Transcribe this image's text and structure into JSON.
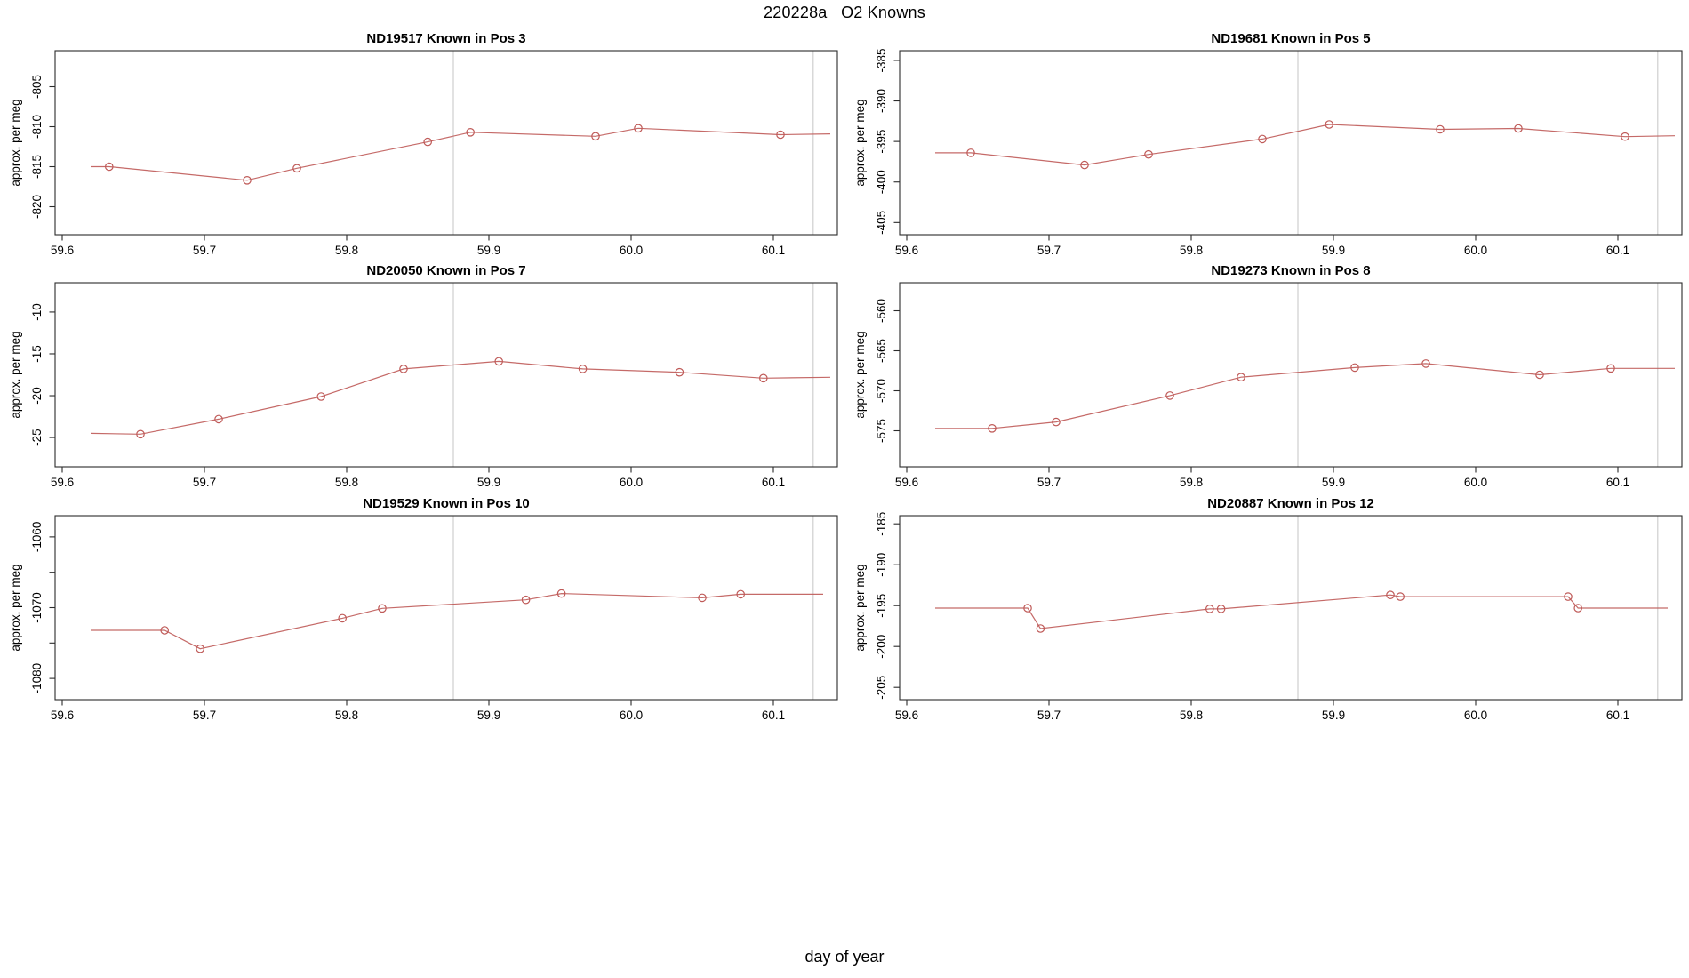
{
  "page": {
    "title": "220228a   O2 Knowns",
    "xlabel": "day of year",
    "background": "#ffffff"
  },
  "style": {
    "line_color": "#bf5a58",
    "grid_color": "#cfcfcf",
    "axis_color": "#2b2b2b",
    "text_color": "#000000"
  },
  "chart_common": {
    "type": "line",
    "ylabel": "approx. per meg",
    "xlim": [
      59.595,
      60.145
    ],
    "xticks": [
      {
        "v": 59.6,
        "l": "59.6"
      },
      {
        "v": 59.7,
        "l": "59.7"
      },
      {
        "v": 59.8,
        "l": "59.8"
      },
      {
        "v": 59.9,
        "l": "59.9"
      },
      {
        "v": 60.0,
        "l": "60.0"
      },
      {
        "v": 60.1,
        "l": "60.1"
      }
    ],
    "vlines": [
      59.875,
      60.128
    ],
    "marker_indices": [
      1,
      2,
      3,
      4,
      5,
      6,
      7,
      8
    ],
    "grid": "off",
    "legend": "none"
  },
  "chart_data": [
    {
      "id": "ND19517",
      "pos": "Known in Pos 3",
      "ylim": [
        -823.5,
        -800.5
      ],
      "yticks": [
        {
          "v": -820,
          "l": "-820"
        },
        {
          "v": -815,
          "l": "-815"
        },
        {
          "v": -810,
          "l": "-810"
        },
        {
          "v": -805,
          "l": "-805"
        }
      ],
      "line": [
        [
          59.62,
          -815.0
        ],
        [
          59.633,
          -815.0
        ],
        [
          59.73,
          -816.7
        ],
        [
          59.765,
          -815.2
        ],
        [
          59.857,
          -811.9
        ],
        [
          59.887,
          -810.7
        ],
        [
          59.975,
          -811.2
        ],
        [
          60.005,
          -810.2
        ],
        [
          60.105,
          -811.0
        ],
        [
          60.14,
          -810.9
        ]
      ]
    },
    {
      "id": "ND19681",
      "pos": "Known in Pos 5",
      "ylim": [
        -406.5,
        -383.8
      ],
      "yticks": [
        {
          "v": -405,
          "l": "-405"
        },
        {
          "v": -400,
          "l": "-400"
        },
        {
          "v": -395,
          "l": "-395"
        },
        {
          "v": -390,
          "l": "-390"
        },
        {
          "v": -385,
          "l": "-385"
        }
      ],
      "line": [
        [
          59.62,
          -396.4
        ],
        [
          59.645,
          -396.4
        ],
        [
          59.725,
          -397.9
        ],
        [
          59.77,
          -396.6
        ],
        [
          59.85,
          -394.7
        ],
        [
          59.897,
          -392.9
        ],
        [
          59.975,
          -393.5
        ],
        [
          60.03,
          -393.4
        ],
        [
          60.105,
          -394.4
        ],
        [
          60.14,
          -394.3
        ]
      ]
    },
    {
      "id": "ND20050",
      "pos": "Known in Pos 7",
      "ylim": [
        -28.5,
        -6.5
      ],
      "yticks": [
        {
          "v": -25,
          "l": "-25"
        },
        {
          "v": -20,
          "l": "-20"
        },
        {
          "v": -15,
          "l": "-15"
        },
        {
          "v": -10,
          "l": "-10"
        }
      ],
      "line": [
        [
          59.62,
          -24.5
        ],
        [
          59.655,
          -24.6
        ],
        [
          59.71,
          -22.8
        ],
        [
          59.782,
          -20.1
        ],
        [
          59.84,
          -16.8
        ],
        [
          59.907,
          -15.9
        ],
        [
          59.966,
          -16.8
        ],
        [
          60.034,
          -17.2
        ],
        [
          60.093,
          -17.9
        ],
        [
          60.14,
          -17.8
        ]
      ]
    },
    {
      "id": "ND19273",
      "pos": "Known in Pos 8",
      "ylim": [
        -579.5,
        -556.5
      ],
      "yticks": [
        {
          "v": -575,
          "l": "-575"
        },
        {
          "v": -570,
          "l": "-570"
        },
        {
          "v": -565,
          "l": "-565"
        },
        {
          "v": -560,
          "l": "-560"
        }
      ],
      "line": [
        [
          59.62,
          -574.7
        ],
        [
          59.66,
          -574.7
        ],
        [
          59.705,
          -573.9
        ],
        [
          59.785,
          -570.6
        ],
        [
          59.835,
          -568.3
        ],
        [
          59.915,
          -567.1
        ],
        [
          59.965,
          -566.6
        ],
        [
          60.045,
          -568.0
        ],
        [
          60.095,
          -567.2
        ],
        [
          60.14,
          -567.2
        ]
      ]
    },
    {
      "id": "ND19529",
      "pos": "Known in Pos 10",
      "ylim": [
        -1083,
        -1057
      ],
      "yticks": [
        {
          "v": -1080,
          "l": "-1080"
        },
        {
          "v": -1075,
          "l": ""
        },
        {
          "v": -1070,
          "l": "-1070"
        },
        {
          "v": -1065,
          "l": ""
        },
        {
          "v": -1060,
          "l": "-1060"
        }
      ],
      "line": [
        [
          59.62,
          -1073.2
        ],
        [
          59.672,
          -1073.2
        ],
        [
          59.697,
          -1075.8
        ],
        [
          59.797,
          -1071.5
        ],
        [
          59.825,
          -1070.1
        ],
        [
          59.926,
          -1068.9
        ],
        [
          59.951,
          -1068.0
        ],
        [
          60.05,
          -1068.6
        ],
        [
          60.077,
          -1068.1
        ],
        [
          60.135,
          -1068.1
        ]
      ]
    },
    {
      "id": "ND20887",
      "pos": "Known in Pos 12",
      "ylim": [
        -206.5,
        -184
      ],
      "yticks": [
        {
          "v": -205,
          "l": "-205"
        },
        {
          "v": -200,
          "l": "-200"
        },
        {
          "v": -195,
          "l": "-195"
        },
        {
          "v": -190,
          "l": "-190"
        },
        {
          "v": -185,
          "l": "-185"
        }
      ],
      "line": [
        [
          59.62,
          -195.3
        ],
        [
          59.685,
          -195.3
        ],
        [
          59.694,
          -197.8
        ],
        [
          59.813,
          -195.4
        ],
        [
          59.821,
          -195.4
        ],
        [
          59.94,
          -193.7
        ],
        [
          59.947,
          -193.9
        ],
        [
          60.065,
          -193.9
        ],
        [
          60.072,
          -195.3
        ],
        [
          60.135,
          -195.3
        ]
      ]
    }
  ]
}
